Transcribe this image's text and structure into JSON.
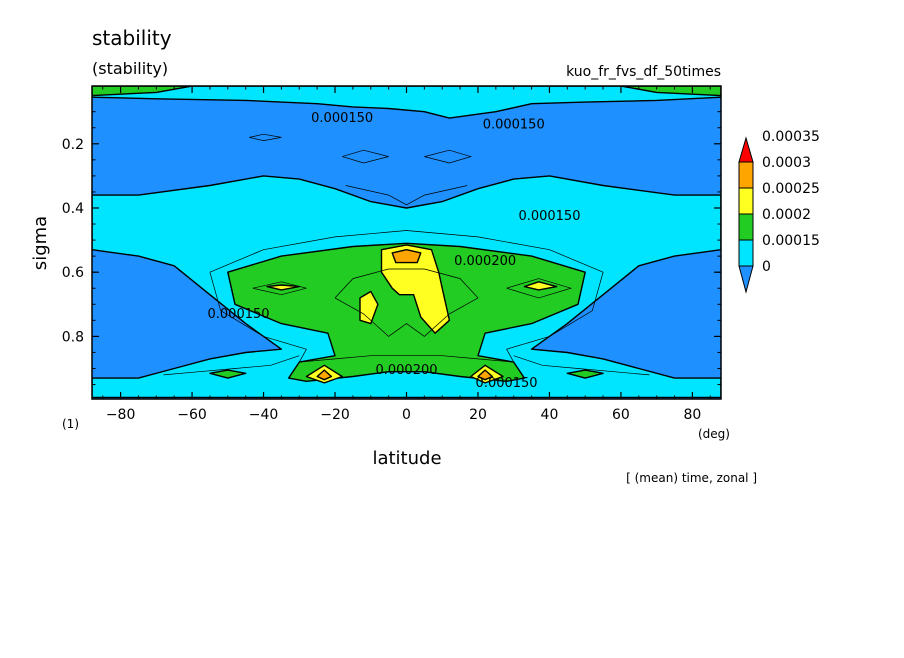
{
  "chart_data": {
    "type": "contour",
    "title": "stability",
    "subtitle": "(stability)",
    "dataset": "kuo_fr_fvs_df_50times",
    "xlabel": "latitude",
    "xunit": "(deg)",
    "ylabel": "sigma",
    "yunit": "(1)",
    "footnote": "[ (mean) time, zonal ]",
    "xlim": [
      -88,
      88
    ],
    "ylim": [
      0.995,
      0.02
    ],
    "x_ticks": [
      -80,
      -60,
      -40,
      -20,
      0,
      20,
      40,
      60,
      80
    ],
    "x_tick_labels": [
      "−80",
      "−60",
      "−40",
      "−20",
      "0",
      "20",
      "40",
      "60",
      "80"
    ],
    "y_ticks": [
      0.2,
      0.4,
      0.6,
      0.8
    ],
    "y_tick_labels": [
      "0.2",
      "0.4",
      "0.6",
      "0.8"
    ],
    "colorbar": {
      "levels": [
        "0",
        "0.00015",
        "0.0002",
        "0.00025",
        "0.0003",
        "0.00035"
      ],
      "colors": [
        "#1e90ff",
        "#00e5ff",
        "#22cc22",
        "#ffff22",
        "#ffa500",
        "#ff0000"
      ]
    },
    "contour_labels": [
      {
        "text": "0.000150",
        "lat": -18,
        "sigma": 0.12
      },
      {
        "text": "0.000150",
        "lat": 30,
        "sigma": 0.14
      },
      {
        "text": "0.000150",
        "lat": 40,
        "sigma": 0.425
      },
      {
        "text": "0.000200",
        "lat": 22,
        "sigma": 0.565
      },
      {
        "text": "0.000150",
        "lat": -47,
        "sigma": 0.73
      },
      {
        "text": "0.000200",
        "lat": 0,
        "sigma": 0.905
      },
      {
        "text": "0.000150",
        "lat": 28,
        "sigma": 0.945
      }
    ],
    "regions": [
      {
        "level": "0.00015",
        "points": [
          [
            -88,
            0.36
          ],
          [
            -75,
            0.36
          ],
          [
            -55,
            0.33
          ],
          [
            -40,
            0.3
          ],
          [
            -30,
            0.31
          ],
          [
            -20,
            0.34
          ],
          [
            -10,
            0.38
          ],
          [
            0,
            0.4
          ],
          [
            10,
            0.38
          ],
          [
            20,
            0.34
          ],
          [
            30,
            0.31
          ],
          [
            40,
            0.3
          ],
          [
            55,
            0.33
          ],
          [
            75,
            0.36
          ],
          [
            88,
            0.36
          ],
          [
            88,
            0.53
          ],
          [
            75,
            0.55
          ],
          [
            65,
            0.58
          ],
          [
            55,
            0.67
          ],
          [
            45,
            0.76
          ],
          [
            35,
            0.84
          ],
          [
            45,
            0.85
          ],
          [
            55,
            0.87
          ],
          [
            65,
            0.9
          ],
          [
            75,
            0.93
          ],
          [
            88,
            0.93
          ],
          [
            88,
            0.99
          ],
          [
            -88,
            0.99
          ],
          [
            -88,
            0.93
          ],
          [
            -75,
            0.93
          ],
          [
            -65,
            0.9
          ],
          [
            -55,
            0.87
          ],
          [
            -45,
            0.85
          ],
          [
            -35,
            0.84
          ],
          [
            -45,
            0.76
          ],
          [
            -55,
            0.67
          ],
          [
            -65,
            0.58
          ],
          [
            -75,
            0.55
          ],
          [
            -88,
            0.53
          ]
        ]
      },
      {
        "level": "0.00015",
        "points": [
          [
            -88,
            0.02
          ],
          [
            88,
            0.02
          ],
          [
            88,
            0.055
          ],
          [
            70,
            0.065
          ],
          [
            50,
            0.07
          ],
          [
            35,
            0.075
          ],
          [
            25,
            0.1
          ],
          [
            12,
            0.12
          ],
          [
            5,
            0.1
          ],
          [
            -5,
            0.09
          ],
          [
            -15,
            0.085
          ],
          [
            -25,
            0.075
          ],
          [
            -45,
            0.065
          ],
          [
            -70,
            0.06
          ],
          [
            -88,
            0.055
          ]
        ]
      },
      {
        "level": "0.0002",
        "points": [
          [
            -50,
            0.6
          ],
          [
            -35,
            0.55
          ],
          [
            -15,
            0.52
          ],
          [
            0,
            0.51
          ],
          [
            15,
            0.52
          ],
          [
            35,
            0.55
          ],
          [
            50,
            0.6
          ],
          [
            48,
            0.7
          ],
          [
            35,
            0.76
          ],
          [
            22,
            0.79
          ],
          [
            20,
            0.86
          ],
          [
            30,
            0.88
          ],
          [
            33,
            0.93
          ],
          [
            28,
            0.94
          ],
          [
            15,
            0.925
          ],
          [
            5,
            0.91
          ],
          [
            -5,
            0.91
          ],
          [
            -15,
            0.925
          ],
          [
            -28,
            0.94
          ],
          [
            -33,
            0.93
          ],
          [
            -30,
            0.88
          ],
          [
            -20,
            0.86
          ],
          [
            -22,
            0.79
          ],
          [
            -35,
            0.76
          ],
          [
            -48,
            0.7
          ]
        ]
      },
      {
        "level": "0.0002",
        "points": [
          [
            -88,
            0.02
          ],
          [
            -60,
            0.02
          ],
          [
            -70,
            0.04
          ],
          [
            -88,
            0.05
          ]
        ]
      },
      {
        "level": "0.0002",
        "points": [
          [
            88,
            0.02
          ],
          [
            60,
            0.02
          ],
          [
            70,
            0.04
          ],
          [
            88,
            0.05
          ]
        ]
      },
      {
        "level": "0.0002",
        "points": [
          [
            -55,
            0.915
          ],
          [
            -50,
            0.905
          ],
          [
            -45,
            0.915
          ],
          [
            -50,
            0.93
          ]
        ]
      },
      {
        "level": "0.0002",
        "points": [
          [
            55,
            0.915
          ],
          [
            50,
            0.905
          ],
          [
            45,
            0.915
          ],
          [
            50,
            0.93
          ]
        ]
      },
      {
        "level": "0.00025",
        "points": [
          [
            -7,
            0.53
          ],
          [
            0,
            0.515
          ],
          [
            7,
            0.53
          ],
          [
            9,
            0.6
          ],
          [
            10,
            0.65
          ],
          [
            12,
            0.75
          ],
          [
            8,
            0.79
          ],
          [
            4,
            0.74
          ],
          [
            2,
            0.67
          ],
          [
            -2,
            0.67
          ],
          [
            -4,
            0.65
          ],
          [
            -7,
            0.6
          ]
        ]
      },
      {
        "level": "0.00025",
        "points": [
          [
            -13,
            0.68
          ],
          [
            -10,
            0.66
          ],
          [
            -8,
            0.7
          ],
          [
            -10,
            0.76
          ],
          [
            -13,
            0.75
          ]
        ]
      },
      {
        "level": "0.00025",
        "points": [
          [
            -39,
            0.645
          ],
          [
            -35,
            0.64
          ],
          [
            -30,
            0.645
          ],
          [
            -35,
            0.655
          ]
        ]
      },
      {
        "level": "0.00025",
        "points": [
          [
            33,
            0.645
          ],
          [
            37,
            0.63
          ],
          [
            42,
            0.645
          ],
          [
            37,
            0.655
          ]
        ]
      },
      {
        "level": "0.00025",
        "points": [
          [
            -28,
            0.925
          ],
          [
            -23,
            0.89
          ],
          [
            -18,
            0.925
          ],
          [
            -23,
            0.945
          ]
        ]
      },
      {
        "level": "0.00025",
        "points": [
          [
            18,
            0.925
          ],
          [
            22,
            0.89
          ],
          [
            27,
            0.925
          ],
          [
            22,
            0.945
          ]
        ]
      },
      {
        "level": "0.0003",
        "points": [
          [
            -4,
            0.54
          ],
          [
            0,
            0.53
          ],
          [
            4,
            0.54
          ],
          [
            3,
            0.57
          ],
          [
            -3,
            0.57
          ]
        ]
      },
      {
        "level": "0.0003",
        "points": [
          [
            -25,
            0.925
          ],
          [
            -23,
            0.905
          ],
          [
            -21,
            0.925
          ],
          [
            -23,
            0.935
          ]
        ]
      },
      {
        "level": "0.0003",
        "points": [
          [
            20,
            0.925
          ],
          [
            22,
            0.905
          ],
          [
            24,
            0.925
          ],
          [
            22,
            0.935
          ]
        ]
      }
    ],
    "contour_lines": [
      {
        "style": "thin",
        "points": [
          [
            -55,
            0.6
          ],
          [
            -40,
            0.53
          ],
          [
            -20,
            0.49
          ],
          [
            0,
            0.47
          ],
          [
            20,
            0.49
          ],
          [
            40,
            0.53
          ],
          [
            55,
            0.6
          ],
          [
            52,
            0.72
          ],
          [
            40,
            0.8
          ],
          [
            28,
            0.84
          ],
          [
            30,
            0.88
          ],
          [
            20,
            0.87
          ],
          [
            10,
            0.86
          ],
          [
            0,
            0.86
          ],
          [
            -10,
            0.86
          ],
          [
            -20,
            0.87
          ],
          [
            -30,
            0.88
          ],
          [
            -28,
            0.84
          ],
          [
            -40,
            0.8
          ],
          [
            -52,
            0.72
          ],
          [
            -55,
            0.6
          ]
        ]
      },
      {
        "style": "thin",
        "points": [
          [
            -20,
            0.68
          ],
          [
            -15,
            0.62
          ],
          [
            -5,
            0.59
          ],
          [
            5,
            0.59
          ],
          [
            15,
            0.62
          ],
          [
            20,
            0.68
          ],
          [
            12,
            0.73
          ],
          [
            5,
            0.8
          ],
          [
            0,
            0.76
          ],
          [
            -5,
            0.8
          ],
          [
            -12,
            0.73
          ],
          [
            -20,
            0.68
          ]
        ]
      },
      {
        "style": "thin",
        "points": [
          [
            -43,
            0.65
          ],
          [
            -35,
            0.63
          ],
          [
            -28,
            0.65
          ],
          [
            -35,
            0.67
          ],
          [
            -43,
            0.65
          ]
        ]
      },
      {
        "style": "thin",
        "points": [
          [
            28,
            0.65
          ],
          [
            37,
            0.62
          ],
          [
            46,
            0.65
          ],
          [
            37,
            0.68
          ],
          [
            28,
            0.65
          ]
        ]
      },
      {
        "style": "thin",
        "points": [
          [
            -17,
            0.33
          ],
          [
            -5,
            0.36
          ],
          [
            0,
            0.39
          ],
          [
            5,
            0.36
          ],
          [
            17,
            0.33
          ]
        ]
      },
      {
        "style": "thin",
        "points": [
          [
            -18,
            0.24
          ],
          [
            -12,
            0.22
          ],
          [
            -5,
            0.24
          ],
          [
            -12,
            0.26
          ],
          [
            -18,
            0.24
          ]
        ]
      },
      {
        "style": "thin",
        "points": [
          [
            5,
            0.24
          ],
          [
            12,
            0.22
          ],
          [
            18,
            0.24
          ],
          [
            12,
            0.26
          ],
          [
            5,
            0.24
          ]
        ]
      },
      {
        "style": "thin",
        "points": [
          [
            -44,
            0.18
          ],
          [
            -40,
            0.17
          ],
          [
            -35,
            0.18
          ],
          [
            -40,
            0.19
          ],
          [
            -44,
            0.18
          ]
        ]
      },
      {
        "style": "thin",
        "points": [
          [
            -30,
            0.86
          ],
          [
            -38,
            0.89
          ],
          [
            -48,
            0.9
          ],
          [
            -58,
            0.91
          ],
          [
            -68,
            0.92
          ]
        ]
      },
      {
        "style": "thin",
        "points": [
          [
            30,
            0.86
          ],
          [
            38,
            0.89
          ],
          [
            48,
            0.9
          ],
          [
            58,
            0.91
          ],
          [
            68,
            0.92
          ]
        ]
      }
    ]
  }
}
